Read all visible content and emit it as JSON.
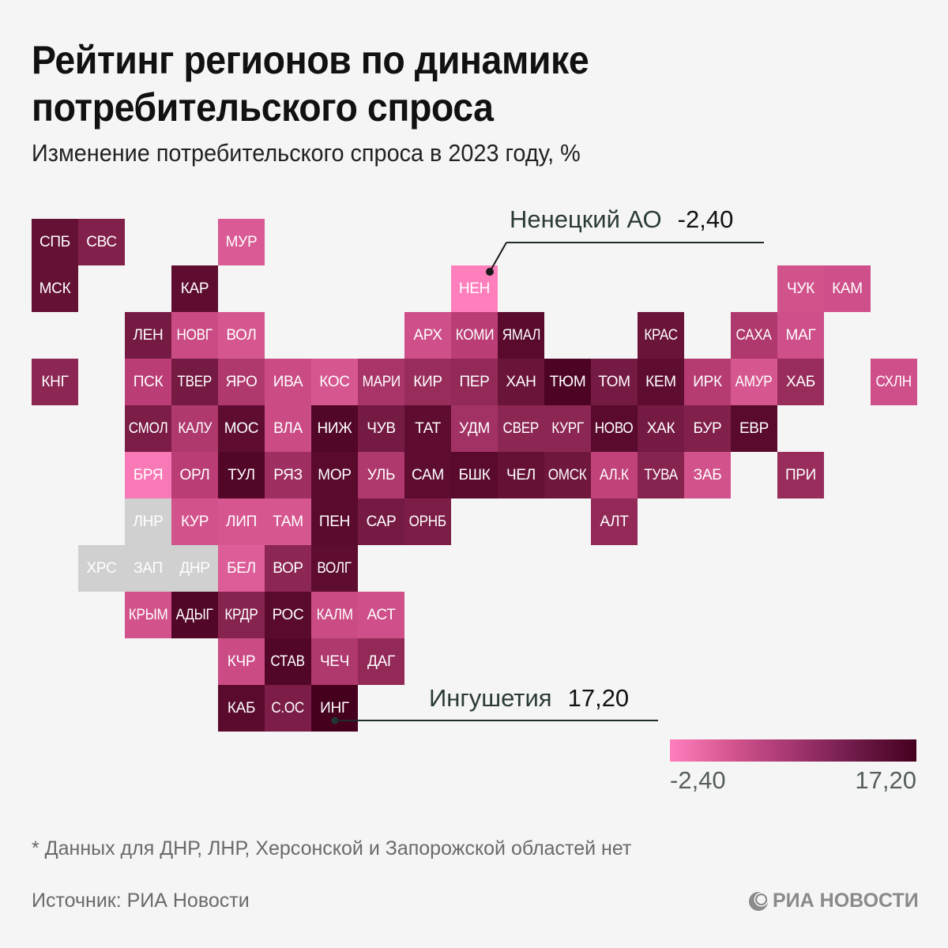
{
  "chart_data": {
    "type": "heatmap",
    "title": "Рейтинг регионов по динамике потребительского спроса",
    "subtitle": "Изменение потребительского спроса в 2023 году, %",
    "value_range": [
      -2.4,
      17.2
    ],
    "colormap": {
      "low": "#ff7fbd",
      "high": "#45001e",
      "no_data": "#d0d0d0"
    },
    "cells": [
      {
        "code": "СПБ",
        "col": 0,
        "row": 0,
        "value": 14.5
      },
      {
        "code": "СВС",
        "col": 1,
        "row": 0,
        "value": 12.0
      },
      {
        "code": "МУР",
        "col": 4,
        "row": 0,
        "value": 3.0
      },
      {
        "code": "МСК",
        "col": 0,
        "row": 1,
        "value": 14.5
      },
      {
        "code": "КАР",
        "col": 3,
        "row": 1,
        "value": 15.0
      },
      {
        "code": "НЕН",
        "col": 9,
        "row": 1,
        "value": -2.4
      },
      {
        "code": "ЧУК",
        "col": 16,
        "row": 1,
        "value": 4.0
      },
      {
        "code": "КАМ",
        "col": 17,
        "row": 1,
        "value": 4.5
      },
      {
        "code": "ЛЕН",
        "col": 2,
        "row": 2,
        "value": 13.0
      },
      {
        "code": "НОВГ",
        "col": 3,
        "row": 2,
        "value": 5.0
      },
      {
        "code": "ВОЛ",
        "col": 4,
        "row": 2,
        "value": 3.5
      },
      {
        "code": "АРХ",
        "col": 8,
        "row": 2,
        "value": 4.5
      },
      {
        "code": "КОМИ",
        "col": 9,
        "row": 2,
        "value": 7.0
      },
      {
        "code": "ЯМАЛ",
        "col": 10,
        "row": 2,
        "value": 15.5
      },
      {
        "code": "КРАС",
        "col": 13,
        "row": 2,
        "value": 14.0
      },
      {
        "code": "САХА",
        "col": 15,
        "row": 2,
        "value": 8.0
      },
      {
        "code": "МАГ",
        "col": 16,
        "row": 2,
        "value": 4.5
      },
      {
        "code": "КНГ",
        "col": 0,
        "row": 3,
        "value": 11.0
      },
      {
        "code": "ПСК",
        "col": 2,
        "row": 3,
        "value": 7.0
      },
      {
        "code": "ТВЕР",
        "col": 3,
        "row": 3,
        "value": 13.0
      },
      {
        "code": "ЯРО",
        "col": 4,
        "row": 3,
        "value": 8.0
      },
      {
        "code": "ИВА",
        "col": 5,
        "row": 3,
        "value": 5.0
      },
      {
        "code": "КОС",
        "col": 6,
        "row": 3,
        "value": 3.5
      },
      {
        "code": "МАРИ",
        "col": 7,
        "row": 3,
        "value": 8.5
      },
      {
        "code": "КИР",
        "col": 8,
        "row": 3,
        "value": 10.0
      },
      {
        "code": "ПЕР",
        "col": 9,
        "row": 3,
        "value": 10.5
      },
      {
        "code": "ХАН",
        "col": 10,
        "row": 3,
        "value": 14.0
      },
      {
        "code": "ТЮМ",
        "col": 11,
        "row": 3,
        "value": 16.5
      },
      {
        "code": "ТОМ",
        "col": 12,
        "row": 3,
        "value": 13.0
      },
      {
        "code": "КЕМ",
        "col": 13,
        "row": 3,
        "value": 15.0
      },
      {
        "code": "ИРК",
        "col": 14,
        "row": 3,
        "value": 7.5
      },
      {
        "code": "АМУР",
        "col": 15,
        "row": 3,
        "value": 3.5
      },
      {
        "code": "ХАБ",
        "col": 16,
        "row": 3,
        "value": 10.0
      },
      {
        "code": "СХЛН",
        "col": 18,
        "row": 3,
        "value": 4.5
      },
      {
        "code": "СМОЛ",
        "col": 2,
        "row": 4,
        "value": 12.5
      },
      {
        "code": "КАЛУ",
        "col": 3,
        "row": 4,
        "value": 8.0
      },
      {
        "code": "МОС",
        "col": 4,
        "row": 4,
        "value": 15.0
      },
      {
        "code": "ВЛА",
        "col": 5,
        "row": 4,
        "value": 5.0
      },
      {
        "code": "НИЖ",
        "col": 6,
        "row": 4,
        "value": 16.0
      },
      {
        "code": "ЧУВ",
        "col": 7,
        "row": 4,
        "value": 13.0
      },
      {
        "code": "ТАТ",
        "col": 8,
        "row": 4,
        "value": 15.0
      },
      {
        "code": "УДМ",
        "col": 9,
        "row": 4,
        "value": 9.0
      },
      {
        "code": "СВЕР",
        "col": 10,
        "row": 4,
        "value": 11.0
      },
      {
        "code": "КУРГ",
        "col": 11,
        "row": 4,
        "value": 11.0
      },
      {
        "code": "НОВО",
        "col": 12,
        "row": 4,
        "value": 15.5
      },
      {
        "code": "ХАК",
        "col": 13,
        "row": 4,
        "value": 13.0
      },
      {
        "code": "БУР",
        "col": 14,
        "row": 4,
        "value": 12.0
      },
      {
        "code": "ЕВР",
        "col": 15,
        "row": 4,
        "value": 15.5
      },
      {
        "code": "БРЯ",
        "col": 2,
        "row": 5,
        "value": -1.5
      },
      {
        "code": "ОРЛ",
        "col": 3,
        "row": 5,
        "value": 7.0
      },
      {
        "code": "ТУЛ",
        "col": 4,
        "row": 5,
        "value": 16.0
      },
      {
        "code": "РЯЗ",
        "col": 5,
        "row": 5,
        "value": 9.5
      },
      {
        "code": "МОР",
        "col": 6,
        "row": 5,
        "value": 15.5
      },
      {
        "code": "УЛЬ",
        "col": 7,
        "row": 5,
        "value": 8.0
      },
      {
        "code": "САМ",
        "col": 8,
        "row": 5,
        "value": 15.0
      },
      {
        "code": "БШК",
        "col": 9,
        "row": 5,
        "value": 15.5
      },
      {
        "code": "ЧЕЛ",
        "col": 10,
        "row": 5,
        "value": 14.5
      },
      {
        "code": "ОМСК",
        "col": 11,
        "row": 5,
        "value": 13.5
      },
      {
        "code": "АЛ.К",
        "col": 12,
        "row": 5,
        "value": 6.5
      },
      {
        "code": "ТУВА",
        "col": 13,
        "row": 5,
        "value": 11.5
      },
      {
        "code": "ЗАБ",
        "col": 14,
        "row": 5,
        "value": 4.0
      },
      {
        "code": "ПРИ",
        "col": 16,
        "row": 5,
        "value": 10.0
      },
      {
        "code": "ЛНР",
        "col": 2,
        "row": 6,
        "value": null
      },
      {
        "code": "КУР",
        "col": 3,
        "row": 6,
        "value": 4.0
      },
      {
        "code": "ЛИП",
        "col": 4,
        "row": 6,
        "value": 3.5
      },
      {
        "code": "ТАМ",
        "col": 5,
        "row": 6,
        "value": 3.5
      },
      {
        "code": "ПЕН",
        "col": 6,
        "row": 6,
        "value": 15.5
      },
      {
        "code": "САР",
        "col": 7,
        "row": 6,
        "value": 13.0
      },
      {
        "code": "ОРНБ",
        "col": 8,
        "row": 6,
        "value": 12.5
      },
      {
        "code": "АЛТ",
        "col": 12,
        "row": 6,
        "value": 10.5
      },
      {
        "code": "ХРС",
        "col": 1,
        "row": 7,
        "value": null
      },
      {
        "code": "ЗАП",
        "col": 2,
        "row": 7,
        "value": null
      },
      {
        "code": "ДНР",
        "col": 3,
        "row": 7,
        "value": null
      },
      {
        "code": "БЕЛ",
        "col": 4,
        "row": 7,
        "value": 2.5
      },
      {
        "code": "ВОР",
        "col": 5,
        "row": 7,
        "value": 11.0
      },
      {
        "code": "ВОЛГ",
        "col": 6,
        "row": 7,
        "value": 15.0
      },
      {
        "code": "КРЫМ",
        "col": 2,
        "row": 8,
        "value": 4.0
      },
      {
        "code": "АДЫГ",
        "col": 3,
        "row": 8,
        "value": 16.0
      },
      {
        "code": "КРДР",
        "col": 4,
        "row": 8,
        "value": 11.5
      },
      {
        "code": "РОС",
        "col": 5,
        "row": 8,
        "value": 15.5
      },
      {
        "code": "КАЛМ",
        "col": 6,
        "row": 8,
        "value": 5.0
      },
      {
        "code": "АСТ",
        "col": 7,
        "row": 8,
        "value": 4.5
      },
      {
        "code": "КЧР",
        "col": 4,
        "row": 9,
        "value": 5.0
      },
      {
        "code": "СТАВ",
        "col": 5,
        "row": 9,
        "value": 16.0
      },
      {
        "code": "ЧЕЧ",
        "col": 6,
        "row": 9,
        "value": 8.0
      },
      {
        "code": "ДАГ",
        "col": 7,
        "row": 9,
        "value": 10.5
      },
      {
        "code": "КАБ",
        "col": 4,
        "row": 10,
        "value": 15.5
      },
      {
        "code": "С.ОС",
        "col": 5,
        "row": 10,
        "value": 12.5
      },
      {
        "code": "ИНГ",
        "col": 6,
        "row": 10,
        "value": 17.2
      }
    ],
    "annotations": [
      {
        "label": "Ненецкий АО",
        "value": "-2,40",
        "target": "НЕН"
      },
      {
        "label": "Ингушетия",
        "value": "17,20",
        "target": "ИНГ"
      }
    ],
    "legend": {
      "min_label": "-2,40",
      "max_label": "17,20"
    }
  },
  "footer": {
    "footnote": "* Данных для ДНР, ЛНР, Херсонской и Запорожской областей нет",
    "source": "Источник: РИА Новости",
    "logo_text": "РИА НОВОСТИ"
  }
}
